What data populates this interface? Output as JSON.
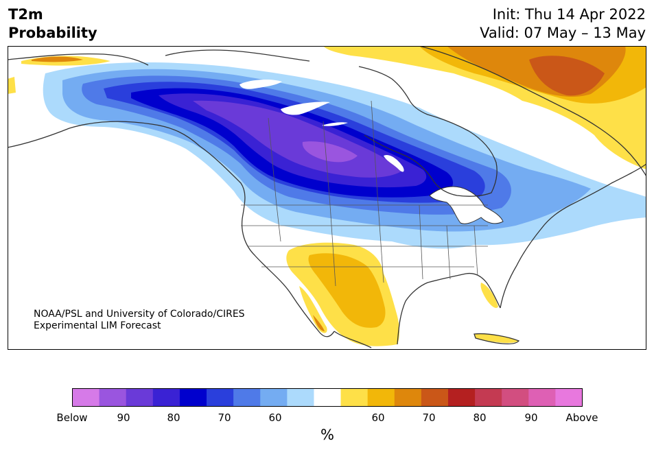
{
  "header": {
    "title_line1": "T2m",
    "title_line2": "Probability",
    "init": "Init: Thu 14 Apr 2022",
    "valid": "Valid: 07 May – 13 May"
  },
  "credit": {
    "line1": "NOAA/PSL and University of Colorado/CIRES",
    "line2": "Experimental LIM Forecast"
  },
  "colorbar": {
    "colors": [
      "#d67ae8",
      "#9a55df",
      "#6a3ad8",
      "#3a22d4",
      "#0000cd",
      "#2a3fdc",
      "#4f7ae8",
      "#74acf2",
      "#acdafc",
      "#ffffff",
      "#fee048",
      "#f2b709",
      "#de870c",
      "#ca5718",
      "#b42020",
      "#c43a52",
      "#d24e80",
      "#de60b4",
      "#e878de"
    ],
    "labels": [
      "Below",
      "90",
      "80",
      "70",
      "60",
      "60",
      "70",
      "80",
      "90",
      "Above"
    ],
    "unit": "%"
  },
  "map_colors": {
    "ocean": "#ffffff",
    "land": "#ffffff",
    "coast": "#333333",
    "boundary": "#444444"
  }
}
